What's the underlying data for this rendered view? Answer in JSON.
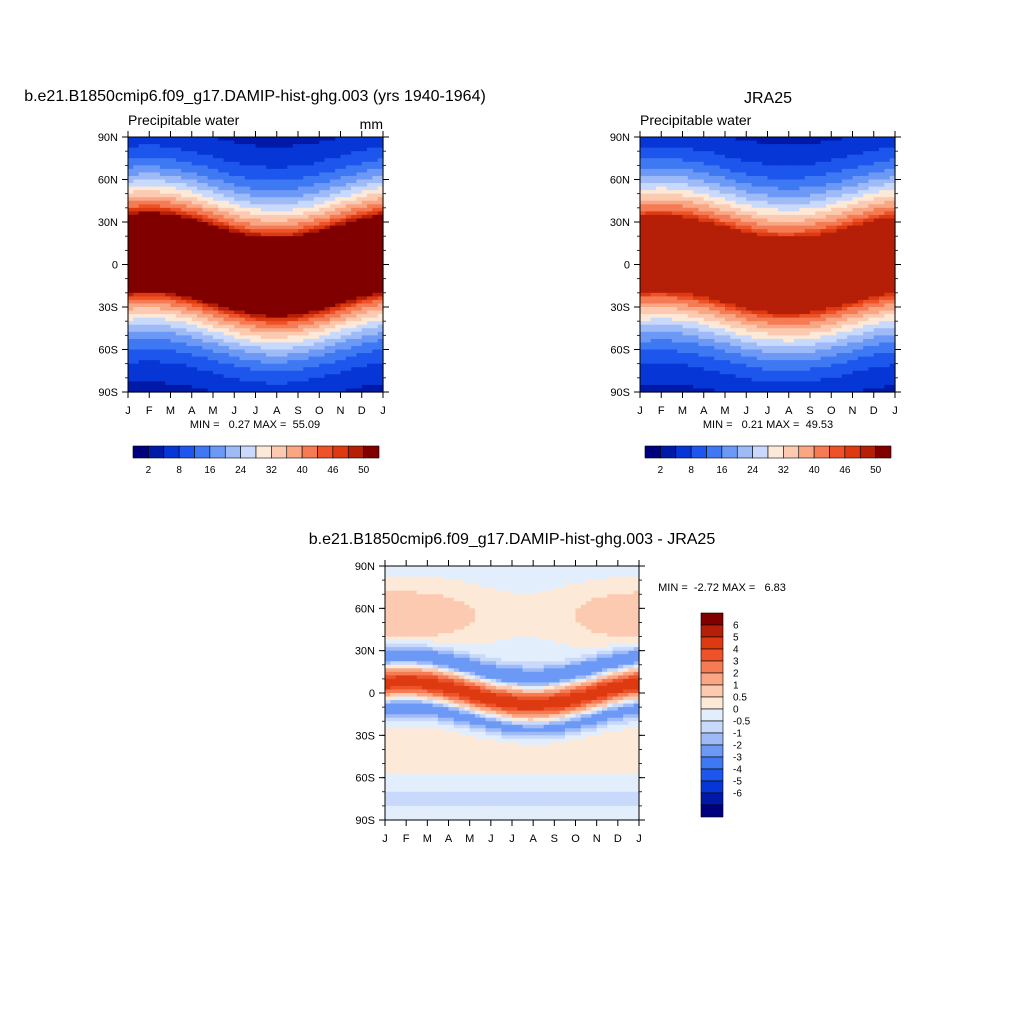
{
  "colors": {
    "main_palette": [
      "#00007f",
      "#0019a7",
      "#0736d6",
      "#1d56ec",
      "#3f78f3",
      "#6d99f6",
      "#9ebbf8",
      "#c8d9fb",
      "#fde9d8",
      "#fccab0",
      "#f9a684",
      "#f57b55",
      "#ee5228",
      "#de3a12",
      "#b51f07",
      "#800000"
    ],
    "diff_palette": [
      "#00007f",
      "#0019a7",
      "#0736d6",
      "#1d56ec",
      "#3f78f3",
      "#6d99f6",
      "#9ebbf8",
      "#c8d9fb",
      "#e3eefd",
      "#fde9d8",
      "#fccab0",
      "#f9a684",
      "#f57b55",
      "#ee5228",
      "#de3a12",
      "#b51f07",
      "#800000"
    ]
  },
  "chart_data": [
    {
      "type": "heatmap",
      "title": "b.e21.B1850cmip6.f09_g17.DAMIP-hist-ghg.003 (yrs 1940-1964)",
      "left_label": "Precipitable water",
      "right_label": "mm",
      "x_tick_labels": [
        "J",
        "F",
        "M",
        "A",
        "M",
        "J",
        "J",
        "A",
        "S",
        "O",
        "N",
        "D",
        "J"
      ],
      "y_tick_labels": [
        "90N",
        "60N",
        "30N",
        "0",
        "30S",
        "60S",
        "90S"
      ],
      "ylim": [
        -90,
        90
      ],
      "min": 0.27,
      "max": 55.09,
      "stats_text": "MIN =   0.27 MAX =  55.09",
      "field": {
        "eq_peak": 55,
        "polar_floor": 0.27,
        "itcz_shift": 9,
        "width": 31
      },
      "colorbar": {
        "orientation": "horizontal",
        "levels": [
          2,
          4,
          8,
          12,
          16,
          20,
          24,
          28,
          32,
          36,
          40,
          44,
          46,
          48,
          50
        ],
        "labels": [
          "2",
          "8",
          "16",
          "24",
          "32",
          "40",
          "46",
          "50"
        ]
      }
    },
    {
      "type": "heatmap",
      "title": "JRA25",
      "left_label": "Precipitable water",
      "right_label": "",
      "x_tick_labels": [
        "J",
        "F",
        "M",
        "A",
        "M",
        "J",
        "J",
        "A",
        "S",
        "O",
        "N",
        "D",
        "J"
      ],
      "y_tick_labels": [
        "90N",
        "60N",
        "30N",
        "0",
        "30S",
        "60S",
        "90S"
      ],
      "ylim": [
        -90,
        90
      ],
      "min": 0.21,
      "max": 49.53,
      "stats_text": "MIN =   0.21 MAX =  49.53",
      "field": {
        "eq_peak": 49.5,
        "polar_floor": 0.21,
        "itcz_shift": 8,
        "width": 32
      },
      "colorbar": {
        "orientation": "horizontal",
        "levels": [
          2,
          4,
          8,
          12,
          16,
          20,
          24,
          28,
          32,
          36,
          40,
          44,
          46,
          48,
          50
        ],
        "labels": [
          "2",
          "8",
          "16",
          "24",
          "32",
          "40",
          "46",
          "50"
        ]
      }
    },
    {
      "type": "heatmap",
      "title": "b.e21.B1850cmip6.f09_g17.DAMIP-hist-ghg.003 - JRA25",
      "x_tick_labels": [
        "J",
        "F",
        "M",
        "A",
        "M",
        "J",
        "J",
        "A",
        "S",
        "O",
        "N",
        "D",
        "J"
      ],
      "y_tick_labels": [
        "90N",
        "60N",
        "30N",
        "0",
        "30S",
        "60S",
        "90S"
      ],
      "ylim": [
        -90,
        90
      ],
      "min": -2.72,
      "max": 6.83,
      "stats_text": "MIN =  -2.72 MAX =   6.83",
      "colorbar": {
        "orientation": "vertical",
        "levels": [
          -6,
          -5,
          -4,
          -3,
          -2,
          -1,
          -0.5,
          0,
          0.5,
          1,
          2,
          3,
          4,
          5,
          6
        ],
        "labels": [
          "6",
          "5",
          "4",
          "3",
          "2",
          "1",
          "0.5",
          "0",
          "-0.5",
          "-1",
          "-2",
          "-3",
          "-4",
          "-5",
          "-6"
        ]
      }
    }
  ]
}
